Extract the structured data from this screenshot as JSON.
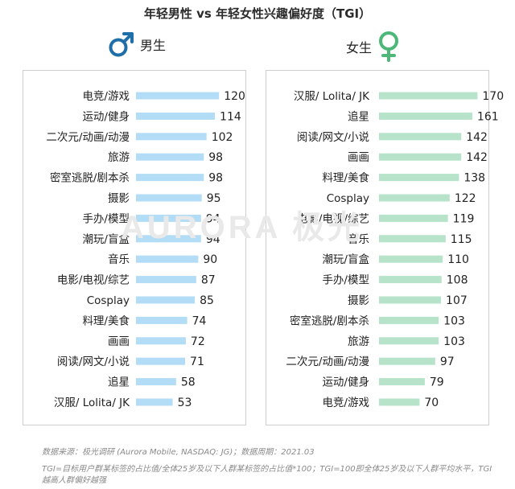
{
  "title": "年轻男性 vs 年轻女性兴趣偏好度（TGI）",
  "watermark": "AURORA 极光",
  "colors": {
    "male": "#b3dcf6",
    "female": "#b6e3ca",
    "male_icon": "#1f6fa9",
    "female_icon": "#4cb779"
  },
  "chart_data": [
    {
      "type": "bar",
      "orientation": "horizontal",
      "series_label": "男生",
      "categories": [
        "电竞/游戏",
        "运动/健身",
        "二次元/动画/动漫",
        "旅游",
        "密室逃脱/剧本杀",
        "摄影",
        "手办/模型",
        "潮玩/盲盒",
        "音乐",
        "电影/电视/综艺",
        "Cosplay",
        "料理/美食",
        "画画",
        "阅读/网文/小说",
        "追星",
        "汉服/ Lolita/ JK"
      ],
      "values": [
        120,
        114,
        102,
        98,
        98,
        95,
        94,
        94,
        90,
        87,
        85,
        74,
        72,
        71,
        58,
        53
      ],
      "xlim": [
        0,
        170
      ]
    },
    {
      "type": "bar",
      "orientation": "horizontal",
      "series_label": "女生",
      "categories": [
        "汉服/ Lolita/ JK",
        "追星",
        "阅读/网文/小说",
        "画画",
        "料理/美食",
        "Cosplay",
        "电影/电视/综艺",
        "音乐",
        "潮玩/盲盒",
        "手办/模型",
        "摄影",
        "密室逃脱/剧本杀",
        "旅游",
        "二次元/动画/动漫",
        "运动/健身",
        "电竞/游戏"
      ],
      "values": [
        170,
        161,
        142,
        142,
        138,
        122,
        119,
        115,
        110,
        108,
        107,
        103,
        103,
        97,
        79,
        70
      ],
      "xlim": [
        0,
        170
      ]
    }
  ],
  "footnotes": [
    "数据来源：极光调研 (Aurora Mobile, NASDAQ: JG)；数据周期：2021.03",
    "TGI=目标用户群某标签的占比值/全体25岁及以下人群某标签的占比值*100；TGI=100即全体25岁及以下人群平均水平，TGI越高人群偏好越强"
  ]
}
